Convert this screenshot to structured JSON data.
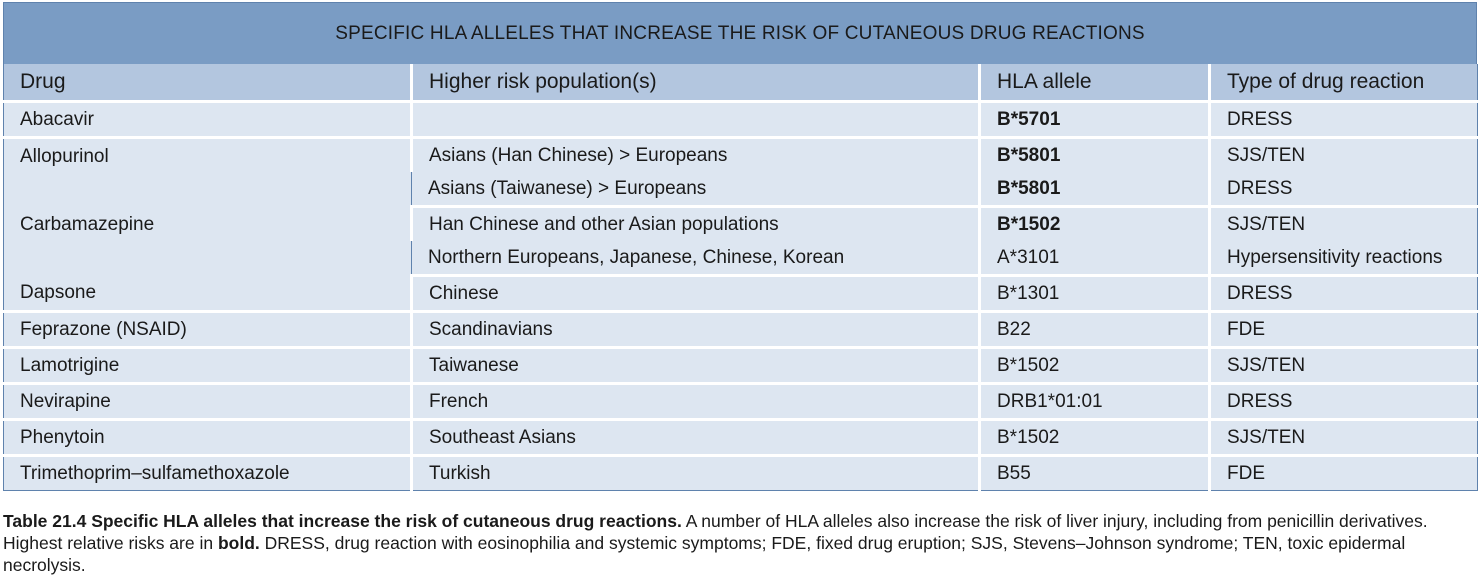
{
  "table": {
    "title": "SPECIFIC HLA ALLELES THAT INCREASE THE RISK OF CUTANEOUS DRUG REACTIONS",
    "headers": [
      "Drug",
      "Higher risk population(s)",
      "HLA allele",
      "Type of drug reaction"
    ],
    "rows": [
      {
        "drug": "Abacavir",
        "population": "",
        "allele": "B*5701",
        "allele_bold": true,
        "reaction": "DRESS"
      },
      {
        "drug": "Allopurinol",
        "population": "Asians (Han Chinese) > Europeans",
        "allele": "B*5801",
        "allele_bold": true,
        "reaction": "SJS/TEN"
      },
      {
        "drug": "",
        "population": "Asians (Taiwanese) > Europeans",
        "allele": "B*5801",
        "allele_bold": true,
        "reaction": "DRESS"
      },
      {
        "drug": "Carbamazepine",
        "population": "Han Chinese and other Asian populations",
        "allele": "B*1502",
        "allele_bold": true,
        "reaction": "SJS/TEN"
      },
      {
        "drug": "",
        "population": "Northern Europeans, Japanese, Chinese, Korean",
        "allele": "A*3101",
        "allele_bold": false,
        "reaction": "Hypersensitivity reactions"
      },
      {
        "drug": "Dapsone",
        "population": "Chinese",
        "allele": "B*1301",
        "allele_bold": false,
        "reaction": "DRESS"
      },
      {
        "drug": "Feprazone (NSAID)",
        "population": "Scandinavians",
        "allele": "B22",
        "allele_bold": false,
        "reaction": "FDE"
      },
      {
        "drug": "Lamotrigine",
        "population": "Taiwanese",
        "allele": "B*1502",
        "allele_bold": false,
        "reaction": "SJS/TEN"
      },
      {
        "drug": "Nevirapine",
        "population": "French",
        "allele": "DRB1*01:01",
        "allele_bold": false,
        "reaction": "DRESS"
      },
      {
        "drug": "Phenytoin",
        "population": "Southeast Asians",
        "allele": "B*1502",
        "allele_bold": false,
        "reaction": "SJS/TEN"
      },
      {
        "drug": "Trimethoprim–sulfamethoxazole",
        "population": "Turkish",
        "allele": "B55",
        "allele_bold": false,
        "reaction": "FDE"
      }
    ]
  },
  "caption": {
    "lead": "Table 21.4 Specific HLA alleles that increase the risk of cutaneous drug reactions.",
    "text1": " A number of HLA alleles also increase the risk of liver injury, including from penicillin derivatives. Highest relative risks are in ",
    "bold_word": "bold.",
    "text2": " DRESS, drug reaction with eosinophilia and systemic symptoms; FDE, fixed drug eruption; SJS, Stevens–Johnson syndrome; TEN, toxic epidermal necrolysis."
  },
  "colors": {
    "title_bg": "#7a9cc4",
    "header_bg": "#b3c6df",
    "row_bg": "#dde6f1",
    "border": "#5f82ad"
  }
}
